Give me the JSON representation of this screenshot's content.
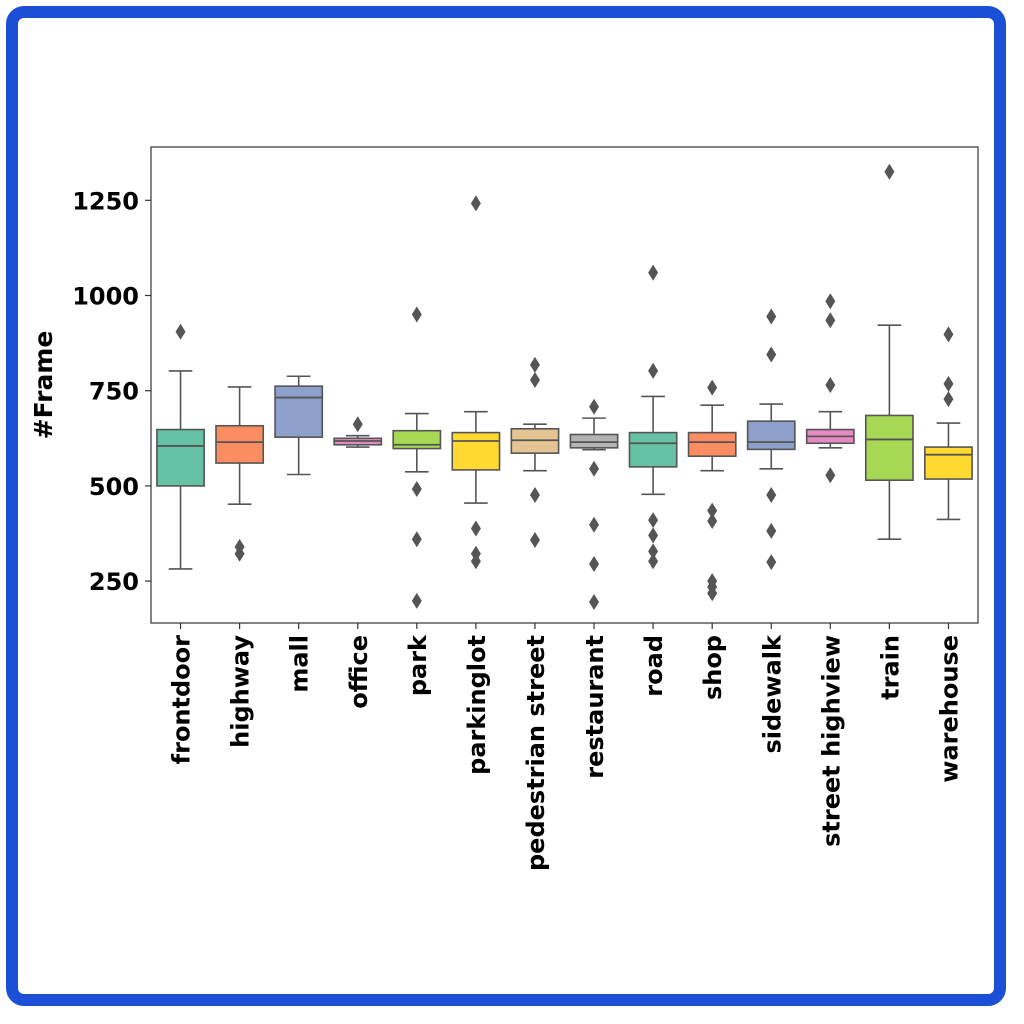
{
  "chart_data": {
    "type": "box",
    "ylabel": "#Frame",
    "xlabel": "",
    "ylim": [
      140,
      1390
    ],
    "yticks": [
      250,
      500,
      750,
      1000,
      1250
    ],
    "grid": false,
    "categories": [
      "frontdoor",
      "highway",
      "mall",
      "office",
      "park",
      "parkinglot",
      "pedestrian street",
      "restaurant",
      "road",
      "shop",
      "sidewalk",
      "street highview",
      "train",
      "warehouse"
    ],
    "colors": [
      "#66c2a5",
      "#fc8d62",
      "#8da0cb",
      "#e78ac3",
      "#a6d854",
      "#ffd92f",
      "#e5c494",
      "#b3b3b3",
      "#66c2a5",
      "#fc8d62",
      "#8da0cb",
      "#e78ac3",
      "#a6d854",
      "#ffd92f"
    ],
    "boxes": [
      {
        "whislo": 282,
        "q1": 500,
        "med": 605,
        "q3": 648,
        "whishi": 802,
        "fliers": [
          905
        ]
      },
      {
        "whislo": 452,
        "q1": 560,
        "med": 615,
        "q3": 658,
        "whishi": 760,
        "fliers": [
          322,
          340
        ]
      },
      {
        "whislo": 530,
        "q1": 628,
        "med": 732,
        "q3": 762,
        "whishi": 788,
        "fliers": []
      },
      {
        "whislo": 602,
        "q1": 608,
        "med": 618,
        "q3": 625,
        "whishi": 632,
        "fliers": [
          662
        ]
      },
      {
        "whislo": 537,
        "q1": 598,
        "med": 608,
        "q3": 645,
        "whishi": 690,
        "fliers": [
          198,
          360,
          492,
          950
        ]
      },
      {
        "whislo": 455,
        "q1": 542,
        "med": 618,
        "q3": 640,
        "whishi": 695,
        "fliers": [
          302,
          322,
          388,
          1242
        ]
      },
      {
        "whislo": 540,
        "q1": 586,
        "med": 620,
        "q3": 650,
        "whishi": 662,
        "fliers": [
          358,
          476,
          778,
          818
        ]
      },
      {
        "whislo": 595,
        "q1": 600,
        "med": 615,
        "q3": 635,
        "whishi": 678,
        "fliers": [
          195,
          295,
          398,
          545,
          708
        ]
      },
      {
        "whislo": 478,
        "q1": 550,
        "med": 612,
        "q3": 640,
        "whishi": 735,
        "fliers": [
          302,
          328,
          370,
          410,
          802,
          1060
        ]
      },
      {
        "whislo": 540,
        "q1": 578,
        "med": 615,
        "q3": 640,
        "whishi": 712,
        "fliers": [
          218,
          235,
          250,
          408,
          435,
          758
        ]
      },
      {
        "whislo": 545,
        "q1": 596,
        "med": 615,
        "q3": 670,
        "whishi": 715,
        "fliers": [
          300,
          382,
          476,
          845,
          945
        ]
      },
      {
        "whislo": 600,
        "q1": 612,
        "med": 630,
        "q3": 648,
        "whishi": 695,
        "fliers": [
          528,
          765,
          935,
          985
        ]
      },
      {
        "whislo": 360,
        "q1": 515,
        "med": 622,
        "q3": 685,
        "whishi": 922,
        "fliers": [
          1325
        ]
      },
      {
        "whislo": 412,
        "q1": 518,
        "med": 582,
        "q3": 602,
        "whishi": 665,
        "fliers": [
          728,
          768,
          898
        ]
      }
    ]
  }
}
